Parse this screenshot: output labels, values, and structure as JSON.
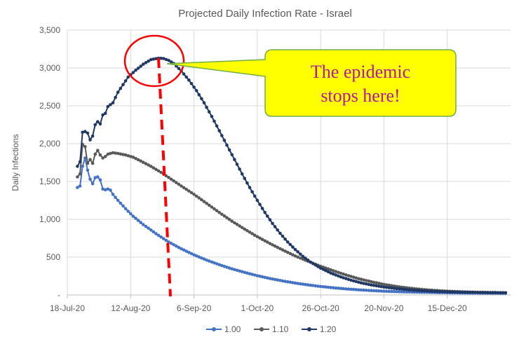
{
  "chart_data": {
    "type": "line",
    "title": "Projected Daily Infection Rate - Israel",
    "ylabel": "Daily Infections",
    "xlabel": "",
    "ylim": [
      0,
      3500
    ],
    "y_ticks": [
      0,
      500,
      1000,
      1500,
      2000,
      2500,
      3000,
      3500
    ],
    "y_tick_labels": [
      "-",
      "500",
      "1,000",
      "1,500",
      "2,000",
      "2,500",
      "3,000",
      "3,500"
    ],
    "x_range_days": [
      0,
      175
    ],
    "x_ticks": [
      {
        "day": 0,
        "label": "18-Jul-20"
      },
      {
        "day": 25,
        "label": "12-Aug-20"
      },
      {
        "day": 50,
        "label": "6-Sep-20"
      },
      {
        "day": 75,
        "label": "1-Oct-20"
      },
      {
        "day": 100,
        "label": "26-Oct-20"
      },
      {
        "day": 125,
        "label": "20-Nov-20"
      },
      {
        "day": 150,
        "label": "15-Dec-20"
      }
    ],
    "grid": true,
    "legend_position": "bottom",
    "series": [
      {
        "name": "1.00",
        "color": "#4472c4",
        "points": [
          [
            4,
            1420
          ],
          [
            5,
            1440
          ],
          [
            6,
            1700
          ],
          [
            7,
            1810
          ],
          [
            8,
            1650
          ],
          [
            9,
            1530
          ],
          [
            10,
            1470
          ],
          [
            11,
            1550
          ],
          [
            12,
            1560
          ],
          [
            13,
            1520
          ],
          [
            14,
            1400
          ],
          [
            15,
            1390
          ],
          [
            16,
            1400
          ],
          [
            17,
            1385
          ],
          [
            18,
            1330
          ],
          [
            20,
            1250
          ],
          [
            23,
            1140
          ],
          [
            26,
            1040
          ],
          [
            30,
            930
          ],
          [
            35,
            810
          ],
          [
            40,
            700
          ],
          [
            45,
            610
          ],
          [
            50,
            530
          ],
          [
            55,
            460
          ],
          [
            60,
            400
          ],
          [
            65,
            345
          ],
          [
            70,
            298
          ],
          [
            75,
            255
          ],
          [
            80,
            218
          ],
          [
            85,
            185
          ],
          [
            90,
            157
          ],
          [
            95,
            133
          ],
          [
            100,
            112
          ],
          [
            105,
            95
          ],
          [
            110,
            80
          ],
          [
            115,
            68
          ],
          [
            120,
            58
          ],
          [
            125,
            50
          ],
          [
            130,
            44
          ],
          [
            135,
            39
          ],
          [
            140,
            35
          ],
          [
            145,
            32
          ],
          [
            150,
            29
          ],
          [
            155,
            27
          ],
          [
            160,
            25
          ],
          [
            165,
            24
          ],
          [
            170,
            23
          ],
          [
            173,
            22
          ]
        ]
      },
      {
        "name": "1.10",
        "color": "#595959",
        "points": [
          [
            4,
            1560
          ],
          [
            5,
            1600
          ],
          [
            6,
            1990
          ],
          [
            7,
            1960
          ],
          [
            8,
            1740
          ],
          [
            9,
            1790
          ],
          [
            10,
            1740
          ],
          [
            11,
            1860
          ],
          [
            12,
            1910
          ],
          [
            13,
            1850
          ],
          [
            14,
            1810
          ],
          [
            15,
            1830
          ],
          [
            16,
            1860
          ],
          [
            18,
            1880
          ],
          [
            20,
            1870
          ],
          [
            23,
            1850
          ],
          [
            26,
            1820
          ],
          [
            29,
            1770
          ],
          [
            33,
            1700
          ],
          [
            37,
            1620
          ],
          [
            41,
            1530
          ],
          [
            45,
            1440
          ],
          [
            50,
            1330
          ],
          [
            55,
            1210
          ],
          [
            60,
            1090
          ],
          [
            65,
            975
          ],
          [
            70,
            870
          ],
          [
            75,
            770
          ],
          [
            80,
            680
          ],
          [
            85,
            595
          ],
          [
            90,
            515
          ],
          [
            95,
            445
          ],
          [
            100,
            380
          ],
          [
            105,
            320
          ],
          [
            110,
            265
          ],
          [
            115,
            215
          ],
          [
            120,
            175
          ],
          [
            125,
            140
          ],
          [
            130,
            112
          ],
          [
            135,
            90
          ],
          [
            140,
            73
          ],
          [
            145,
            60
          ],
          [
            150,
            50
          ],
          [
            155,
            43
          ],
          [
            160,
            38
          ],
          [
            165,
            34
          ],
          [
            170,
            31
          ],
          [
            173,
            29
          ]
        ]
      },
      {
        "name": "1.20",
        "color": "#203864",
        "points": [
          [
            4,
            1700
          ],
          [
            5,
            1760
          ],
          [
            6,
            2150
          ],
          [
            7,
            2160
          ],
          [
            8,
            2140
          ],
          [
            9,
            2050
          ],
          [
            10,
            2100
          ],
          [
            11,
            2250
          ],
          [
            12,
            2290
          ],
          [
            13,
            2260
          ],
          [
            14,
            2380
          ],
          [
            15,
            2400
          ],
          [
            16,
            2490
          ],
          [
            18,
            2540
          ],
          [
            20,
            2680
          ],
          [
            22,
            2780
          ],
          [
            24,
            2880
          ],
          [
            27,
            2970
          ],
          [
            30,
            3050
          ],
          [
            33,
            3110
          ],
          [
            36,
            3130
          ],
          [
            38,
            3125
          ],
          [
            40,
            3100
          ],
          [
            42,
            3060
          ],
          [
            45,
            2960
          ],
          [
            48,
            2840
          ],
          [
            51,
            2700
          ],
          [
            54,
            2540
          ],
          [
            57,
            2360
          ],
          [
            60,
            2170
          ],
          [
            63,
            1980
          ],
          [
            66,
            1790
          ],
          [
            69,
            1600
          ],
          [
            72,
            1420
          ],
          [
            75,
            1250
          ],
          [
            78,
            1090
          ],
          [
            81,
            945
          ],
          [
            84,
            815
          ],
          [
            87,
            700
          ],
          [
            90,
            600
          ],
          [
            93,
            510
          ],
          [
            96,
            435
          ],
          [
            100,
            355
          ],
          [
            104,
            290
          ],
          [
            108,
            238
          ],
          [
            112,
            195
          ],
          [
            116,
            160
          ],
          [
            120,
            132
          ],
          [
            125,
            105
          ],
          [
            130,
            84
          ],
          [
            135,
            68
          ],
          [
            140,
            56
          ],
          [
            145,
            47
          ],
          [
            150,
            41
          ],
          [
            155,
            37
          ],
          [
            160,
            34
          ],
          [
            165,
            32
          ],
          [
            170,
            31
          ],
          [
            173,
            30
          ]
        ]
      }
    ],
    "annotation": {
      "lines": [
        "The epidemic",
        "stops here!"
      ],
      "peak_day": 36,
      "peak_value": 3130,
      "callout_fill": "#ffff00",
      "callout_border": "#70ad47",
      "circle_color": "#ff0000",
      "dashed_line_color": "#ff0000",
      "text_color": "#b5179e"
    }
  }
}
